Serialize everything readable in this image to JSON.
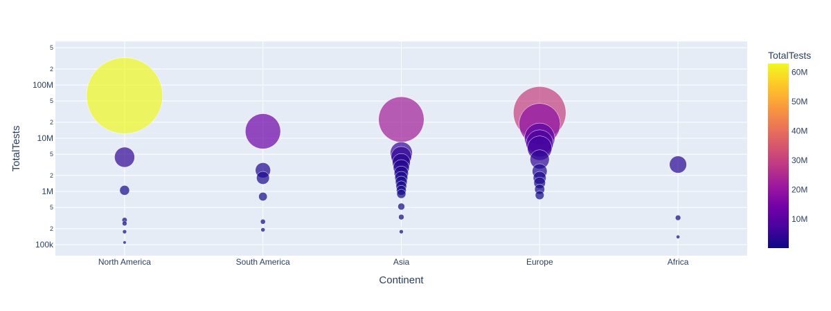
{
  "chart_data": {
    "type": "scatter",
    "title": "",
    "xlabel": "Continent",
    "ylabel": "TotalTests",
    "yscale": "log",
    "ylim": [
      70000,
      600000000
    ],
    "categories": [
      "North America",
      "South America",
      "Asia",
      "Europe",
      "Africa"
    ],
    "y_major_ticks": [
      {
        "value": 100000,
        "label": "100k"
      },
      {
        "value": 1000000,
        "label": "1M"
      },
      {
        "value": 10000000,
        "label": "10M"
      },
      {
        "value": 100000000,
        "label": "100M"
      }
    ],
    "y_minor_ticks": [
      {
        "value": 200000,
        "label": "2"
      },
      {
        "value": 500000,
        "label": "5"
      },
      {
        "value": 2000000,
        "label": "2"
      },
      {
        "value": 5000000,
        "label": "5"
      },
      {
        "value": 20000000,
        "label": "2"
      },
      {
        "value": 50000000,
        "label": "5"
      },
      {
        "value": 200000000,
        "label": "2"
      },
      {
        "value": 500000000,
        "label": "5"
      }
    ],
    "marker_size_and_color_by": "TotalTests",
    "points": [
      {
        "continent": "North America",
        "total_tests": 63000000
      },
      {
        "continent": "North America",
        "total_tests": 4400000
      },
      {
        "continent": "North America",
        "total_tests": 1050000
      },
      {
        "continent": "North America",
        "total_tests": 290000
      },
      {
        "continent": "North America",
        "total_tests": 250000
      },
      {
        "continent": "North America",
        "total_tests": 175000
      },
      {
        "continent": "North America",
        "total_tests": 110000
      },
      {
        "continent": "South America",
        "total_tests": 13500000
      },
      {
        "continent": "South America",
        "total_tests": 2500000
      },
      {
        "continent": "South America",
        "total_tests": 1800000
      },
      {
        "continent": "South America",
        "total_tests": 800000
      },
      {
        "continent": "South America",
        "total_tests": 270000
      },
      {
        "continent": "South America",
        "total_tests": 190000
      },
      {
        "continent": "Asia",
        "total_tests": 22500000
      },
      {
        "continent": "Asia",
        "total_tests": 5300000
      },
      {
        "continent": "Asia",
        "total_tests": 4500000
      },
      {
        "continent": "Asia",
        "total_tests": 3500000
      },
      {
        "continent": "Asia",
        "total_tests": 2800000
      },
      {
        "continent": "Asia",
        "total_tests": 2200000
      },
      {
        "continent": "Asia",
        "total_tests": 1800000
      },
      {
        "continent": "Asia",
        "total_tests": 1500000
      },
      {
        "continent": "Asia",
        "total_tests": 1250000
      },
      {
        "continent": "Asia",
        "total_tests": 1050000
      },
      {
        "continent": "Asia",
        "total_tests": 900000
      },
      {
        "continent": "Asia",
        "total_tests": 520000
      },
      {
        "continent": "Asia",
        "total_tests": 330000
      },
      {
        "continent": "Asia",
        "total_tests": 175000
      },
      {
        "continent": "Europe",
        "total_tests": 30000000
      },
      {
        "continent": "Europe",
        "total_tests": 18500000
      },
      {
        "continent": "Europe",
        "total_tests": 10000000
      },
      {
        "continent": "Europe",
        "total_tests": 8000000
      },
      {
        "continent": "Europe",
        "total_tests": 6500000
      },
      {
        "continent": "Europe",
        "total_tests": 4000000
      },
      {
        "continent": "Europe",
        "total_tests": 2400000
      },
      {
        "continent": "Europe",
        "total_tests": 1800000
      },
      {
        "continent": "Europe",
        "total_tests": 1450000
      },
      {
        "continent": "Europe",
        "total_tests": 1100000
      },
      {
        "continent": "Europe",
        "total_tests": 850000
      },
      {
        "continent": "Africa",
        "total_tests": 3200000
      },
      {
        "continent": "Africa",
        "total_tests": 320000
      },
      {
        "continent": "Africa",
        "total_tests": 140000
      }
    ],
    "colorbar": {
      "title": "TotalTests",
      "min": 100000,
      "max": 63000000,
      "ticks": [
        {
          "value": 10000000,
          "label": "10M"
        },
        {
          "value": 20000000,
          "label": "20M"
        },
        {
          "value": 30000000,
          "label": "30M"
        },
        {
          "value": 40000000,
          "label": "40M"
        },
        {
          "value": 50000000,
          "label": "50M"
        },
        {
          "value": 60000000,
          "label": "60M"
        }
      ],
      "colorscale": [
        "#0d0887",
        "#46039f",
        "#7201a8",
        "#9c179e",
        "#bd3786",
        "#d8576b",
        "#ed7953",
        "#fb9f3a",
        "#fdca26",
        "#f0f921"
      ]
    },
    "grid": true,
    "legend": "colorbar-right"
  },
  "colors": {
    "plot_bg": "#e5ecf6",
    "grid": "#ffffff",
    "text": "#2a3f5f"
  }
}
